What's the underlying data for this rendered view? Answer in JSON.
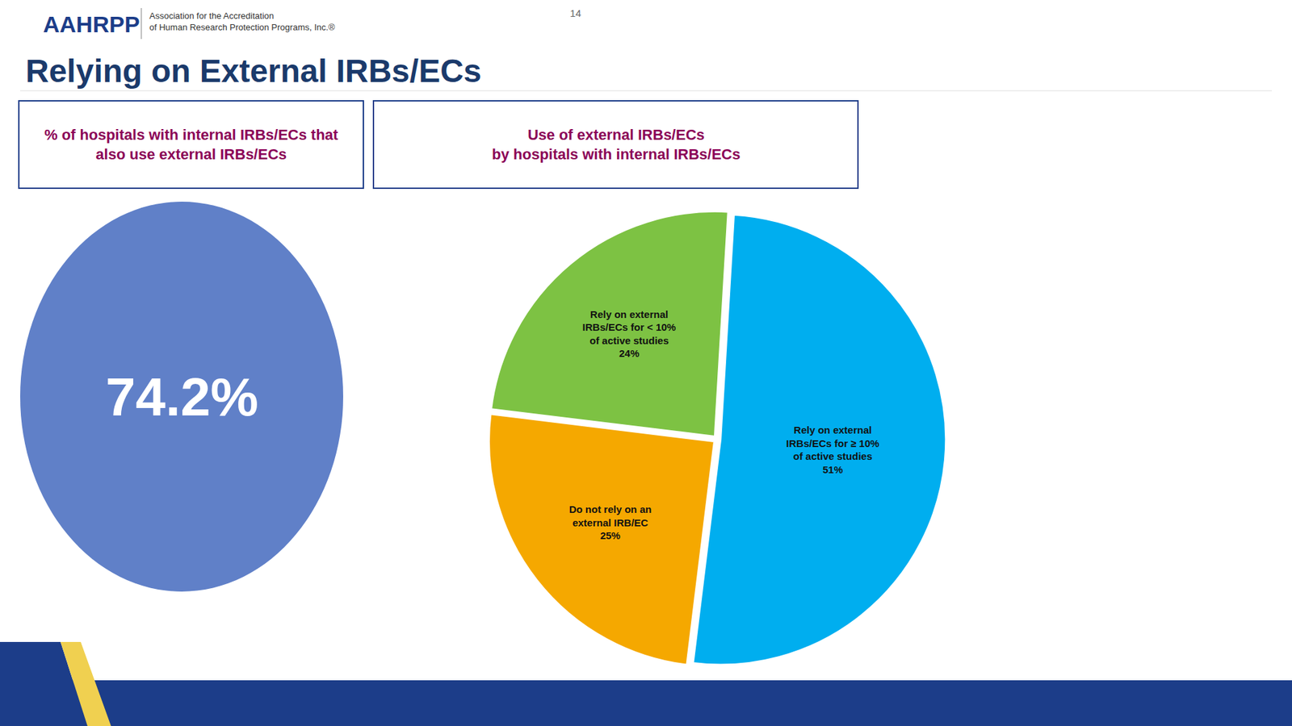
{
  "chart_data": {
    "type": "pie",
    "title": "Relying on External IRBs/ECs",
    "categories": [
      "Rely on external\nIRBs/ECs for < 10%\nof active studies",
      "Do not rely on an\nexternal IRB/EC",
      "Rely on external\nIRBs/ECs for ≥ 10%\nof active studies"
    ],
    "values": [
      24,
      25,
      51
    ],
    "value_labels": [
      "24%",
      "25%",
      "51%"
    ],
    "colors": [
      "#7DC243",
      "#F5A800",
      "#00AEEF"
    ],
    "data_labels": true,
    "annotations": [
      "AAHRPP",
      "Association for the Accreditation\nof Human Research Protection Programs, Inc.®",
      "14",
      "% of hospitals with internal IRBs/ECs that\nalso use external IRBs/ECs",
      "74.2%",
      "Use of external IRBs/ECs\nby hospitals with internal IRBs/ECs"
    ]
  }
}
